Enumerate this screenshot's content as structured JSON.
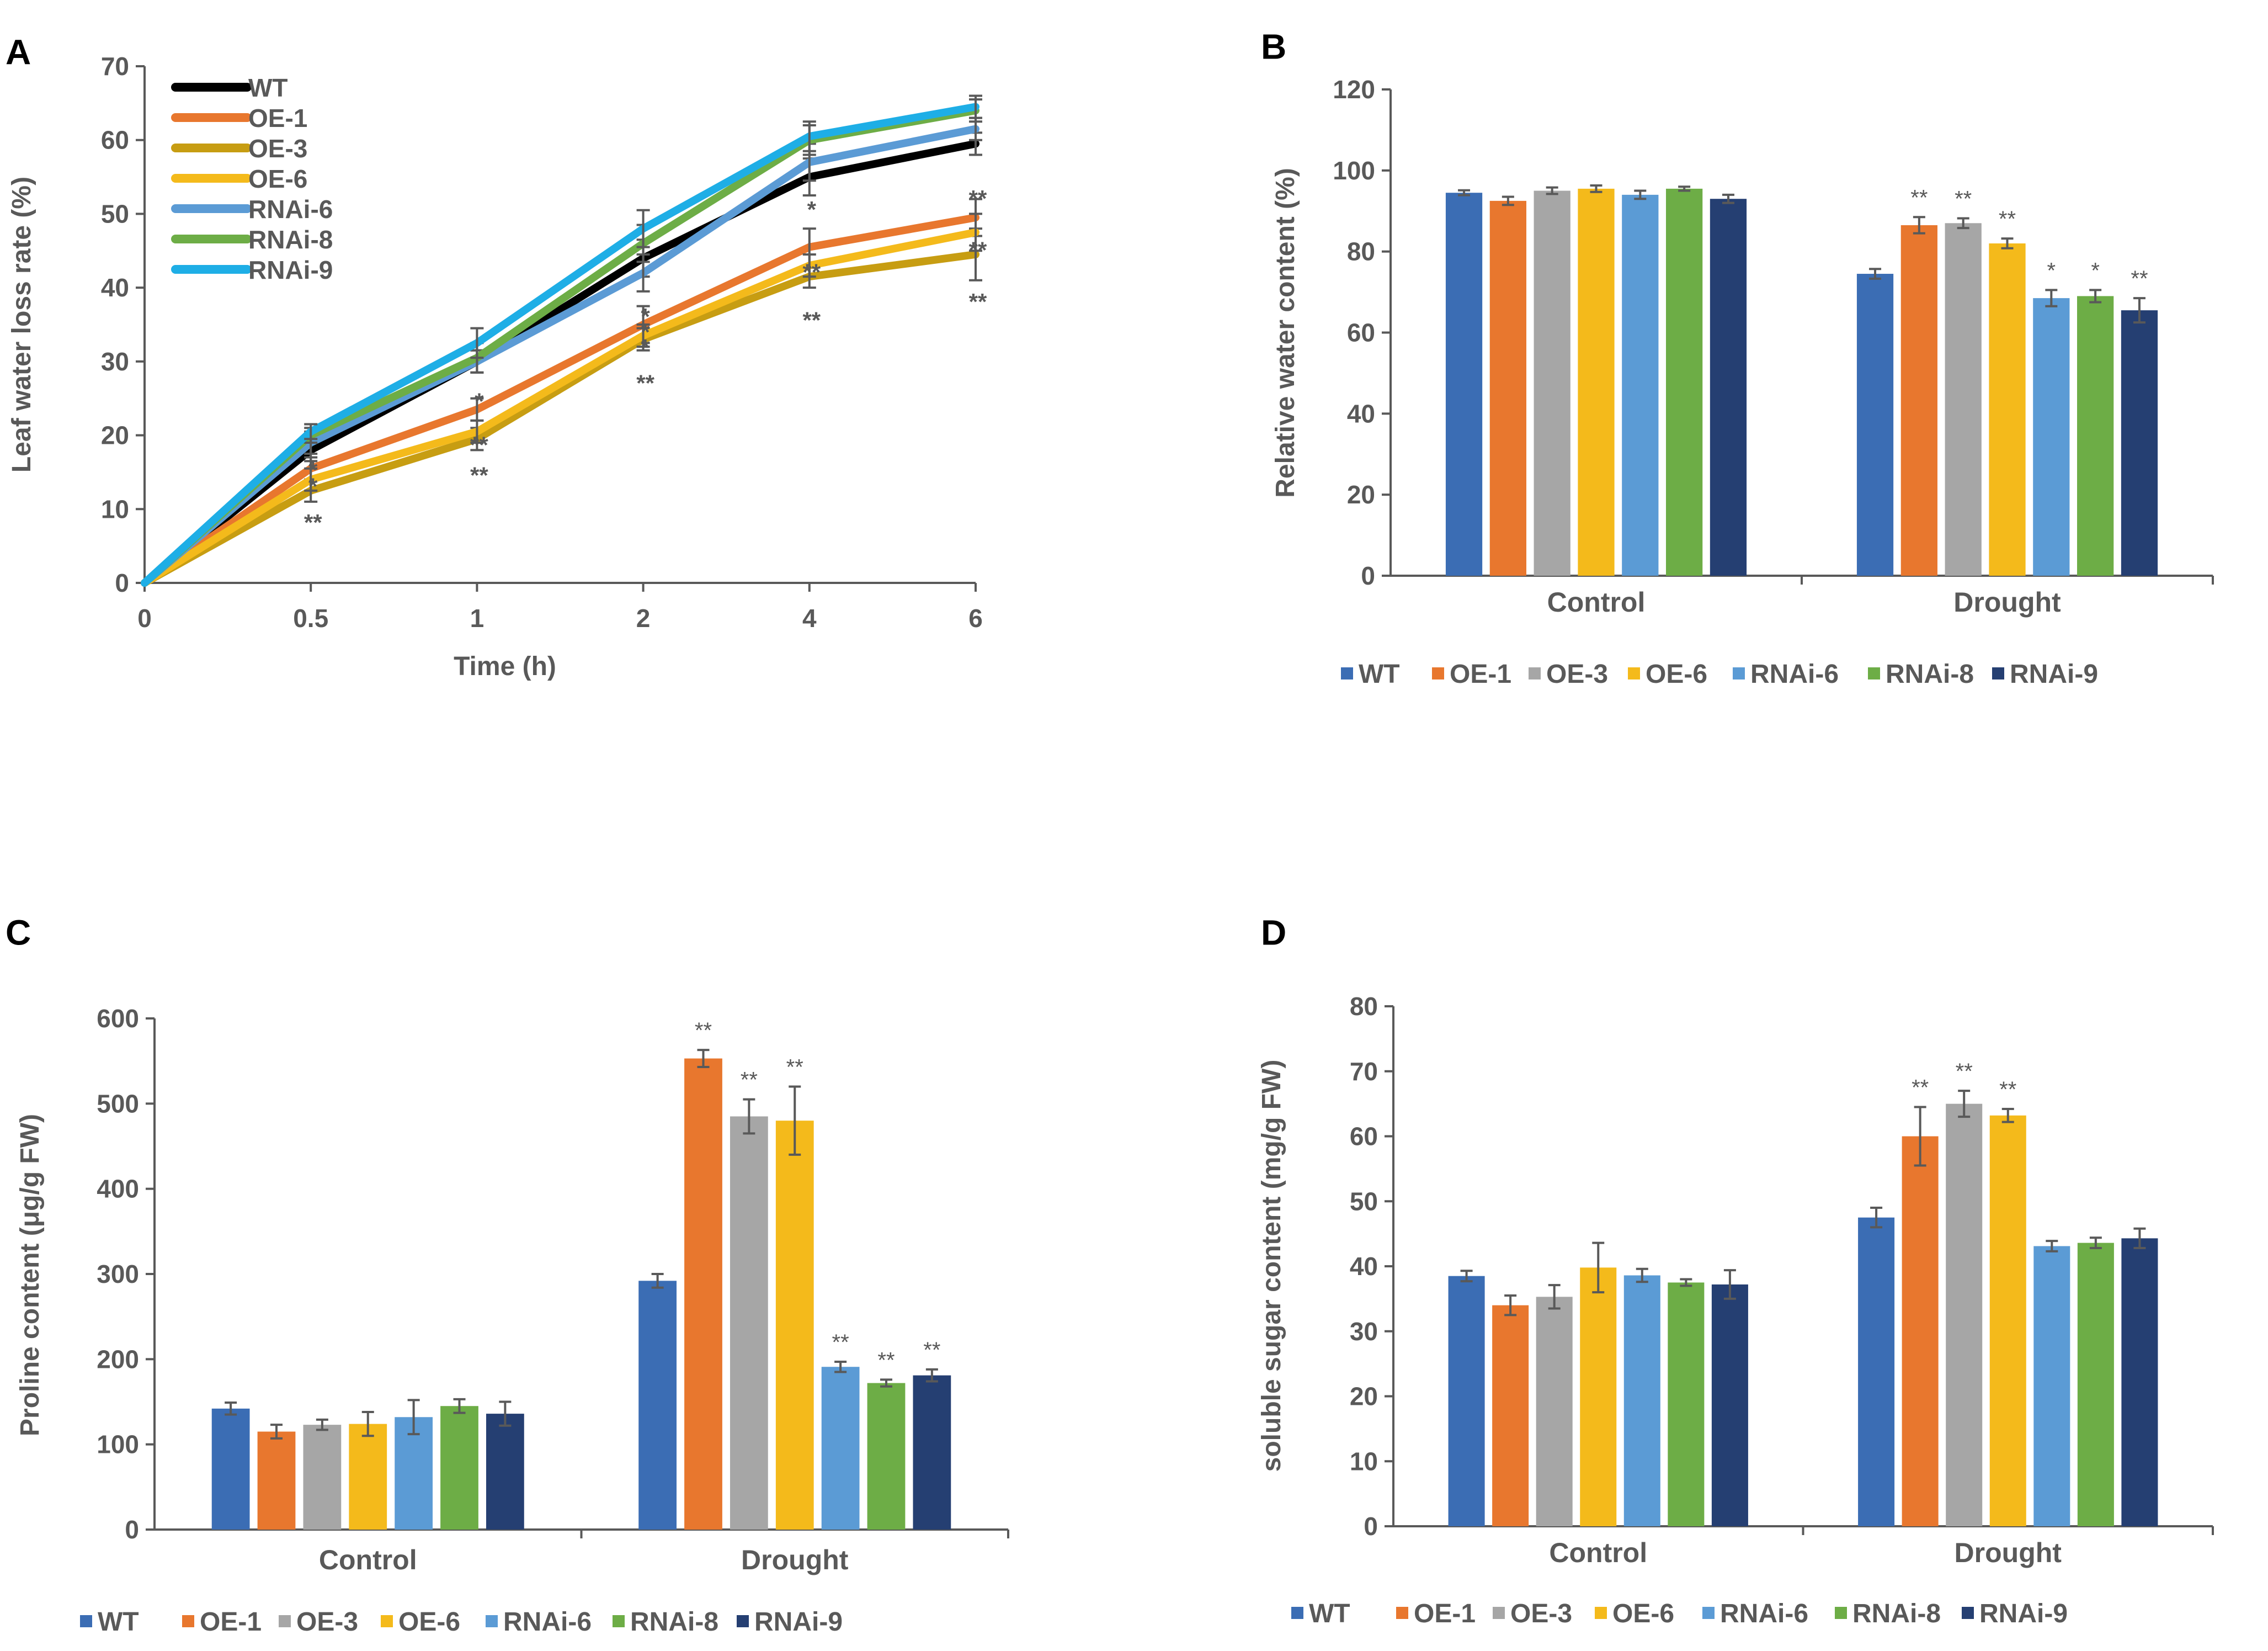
{
  "colors": {
    "WT_line": "#000000",
    "WT_bar": "#3B6DB4",
    "OE-1": "#E8772E",
    "OE-3_line": "#C79D12",
    "OE-3_bar": "#A6A6A6",
    "OE-6": "#F4BA1B",
    "RNAi-6": "#5B9BD5",
    "RNAi-8": "#6DAD46",
    "RNAi-9_line": "#1EAEE6",
    "RNAi-9_bar": "#253F72",
    "axis": "#595959",
    "text": "#595959",
    "panel_label": "#000000"
  },
  "chart_data": [
    {
      "panel": "A",
      "type": "line",
      "xlabel": "Time (h)",
      "ylabel": "Leaf water loss rate  (%)",
      "ylim": [
        0,
        70
      ],
      "yticks": [
        0,
        10,
        20,
        30,
        40,
        50,
        60,
        70
      ],
      "categories": [
        "0",
        "0.5",
        "1",
        "2",
        "4",
        "6"
      ],
      "legend": "top-left",
      "series": [
        {
          "name": "WT",
          "values": [
            0,
            18,
            30,
            44,
            55,
            59.5
          ],
          "err": [
            0,
            1.5,
            1.5,
            2.5,
            2.5,
            1.5
          ]
        },
        {
          "name": "OE-1",
          "values": [
            0,
            15.5,
            23.5,
            35,
            45.5,
            49.5
          ],
          "err": [
            0,
            1.5,
            1.5,
            2.5,
            2.5,
            2.5
          ]
        },
        {
          "name": "OE-3",
          "values": [
            0,
            12.5,
            19.5,
            33,
            41.5,
            44.5
          ],
          "err": [
            0,
            1.5,
            1.5,
            1.5,
            1.5,
            3.5
          ]
        },
        {
          "name": "OE-6",
          "values": [
            0,
            14,
            20.5,
            33.5,
            43,
            47.5
          ],
          "err": [
            0,
            1.5,
            1.5,
            1.5,
            1.5,
            2.5
          ]
        },
        {
          "name": "RNAi-6",
          "values": [
            0,
            19,
            30,
            42,
            57,
            61.5
          ],
          "err": [
            0,
            1.5,
            1.5,
            2.5,
            2.5,
            1.5
          ]
        },
        {
          "name": "RNAi-8",
          "values": [
            0,
            20,
            30.5,
            46,
            60,
            64
          ],
          "err": [
            0,
            1,
            2,
            2.5,
            2,
            1.5
          ]
        },
        {
          "name": "RNAi-9",
          "values": [
            0,
            20.5,
            32.5,
            48,
            60.5,
            64.5
          ],
          "err": [
            0,
            1,
            2,
            2.5,
            2,
            1.5
          ]
        }
      ],
      "annotations": [
        {
          "x": "0.5",
          "y": 15.7,
          "text": "*"
        },
        {
          "x": "0.5",
          "y": 13.5,
          "text": "*"
        },
        {
          "x": "0.5",
          "y": 8.6,
          "text": "**"
        },
        {
          "x": "1",
          "y": 25.0,
          "text": "*"
        },
        {
          "x": "1",
          "y": 19.1,
          "text": "**"
        },
        {
          "x": "1",
          "y": 15.0,
          "text": "**"
        },
        {
          "x": "2",
          "y": 36.5,
          "text": "*"
        },
        {
          "x": "2",
          "y": 34.4,
          "text": "*"
        },
        {
          "x": "2",
          "y": 32.3,
          "text": "*"
        },
        {
          "x": "2",
          "y": 27.5,
          "text": "**"
        },
        {
          "x": "4",
          "y": 51.0,
          "text": "*"
        },
        {
          "x": "4",
          "y": 42.5,
          "text": "**"
        },
        {
          "x": "4",
          "y": 36.0,
          "text": "**"
        },
        {
          "x": "6",
          "y": 52.5,
          "text": "**"
        },
        {
          "x": "6",
          "y": 45.5,
          "text": "**"
        },
        {
          "x": "6",
          "y": 38.5,
          "text": "**"
        }
      ]
    },
    {
      "panel": "B",
      "type": "bar",
      "ylabel": "Relative water content (%)",
      "ylim": [
        0,
        120
      ],
      "yticks": [
        0,
        20,
        40,
        60,
        80,
        100,
        120
      ],
      "categories": [
        "Control",
        "Drought"
      ],
      "legend": "bottom",
      "series": [
        {
          "name": "WT",
          "values": [
            94.5,
            74.5
          ],
          "err": [
            0.6,
            1.2
          ],
          "sig": [
            "",
            ""
          ]
        },
        {
          "name": "OE-1",
          "values": [
            92.5,
            86.5
          ],
          "err": [
            1.0,
            2.0
          ],
          "sig": [
            "",
            "**"
          ]
        },
        {
          "name": "OE-3",
          "values": [
            95,
            87
          ],
          "err": [
            0.8,
            1.2
          ],
          "sig": [
            "",
            "**"
          ]
        },
        {
          "name": "OE-6",
          "values": [
            95.5,
            82
          ],
          "err": [
            0.8,
            1.2
          ],
          "sig": [
            "",
            "**"
          ]
        },
        {
          "name": "RNAi-6",
          "values": [
            94,
            68.5
          ],
          "err": [
            1.0,
            2.0
          ],
          "sig": [
            "",
            "*"
          ]
        },
        {
          "name": "RNAi-8",
          "values": [
            95.5,
            69
          ],
          "err": [
            0.5,
            1.5
          ],
          "sig": [
            "",
            "*"
          ]
        },
        {
          "name": "RNAi-9",
          "values": [
            93,
            65.5
          ],
          "err": [
            1.0,
            3.0
          ],
          "sig": [
            "",
            "**"
          ]
        }
      ]
    },
    {
      "panel": "C",
      "type": "bar",
      "ylabel": "Proline content (μg/g  FW)",
      "ylim": [
        0,
        600
      ],
      "yticks": [
        0,
        100,
        200,
        300,
        400,
        500,
        600
      ],
      "categories": [
        "Control",
        "Drought"
      ],
      "legend": "bottom",
      "series": [
        {
          "name": "WT",
          "values": [
            142,
            292
          ],
          "err": [
            7,
            8
          ],
          "sig": [
            "",
            ""
          ]
        },
        {
          "name": "OE-1",
          "values": [
            115,
            553
          ],
          "err": [
            8,
            10
          ],
          "sig": [
            "",
            "**"
          ]
        },
        {
          "name": "OE-3",
          "values": [
            123,
            485
          ],
          "err": [
            6,
            20
          ],
          "sig": [
            "",
            "**"
          ]
        },
        {
          "name": "OE-6",
          "values": [
            124,
            480
          ],
          "err": [
            14,
            40
          ],
          "sig": [
            "",
            "**"
          ]
        },
        {
          "name": "RNAi-6",
          "values": [
            132,
            191
          ],
          "err": [
            20,
            6
          ],
          "sig": [
            "",
            "**"
          ]
        },
        {
          "name": "RNAi-8",
          "values": [
            145,
            172
          ],
          "err": [
            8,
            4
          ],
          "sig": [
            "",
            "**"
          ]
        },
        {
          "name": "RNAi-9",
          "values": [
            136,
            181
          ],
          "err": [
            14,
            7
          ],
          "sig": [
            "",
            "**"
          ]
        }
      ]
    },
    {
      "panel": "D",
      "type": "bar",
      "ylabel": "soluble sugar content (mg/g FW)",
      "ylim": [
        0,
        80
      ],
      "yticks": [
        0,
        10,
        20,
        30,
        40,
        50,
        60,
        70,
        80
      ],
      "categories": [
        "Control",
        "Drought"
      ],
      "legend": "bottom",
      "series": [
        {
          "name": "WT",
          "values": [
            38.5,
            47.5
          ],
          "err": [
            0.8,
            1.5
          ],
          "sig": [
            "",
            ""
          ]
        },
        {
          "name": "OE-1",
          "values": [
            34,
            60
          ],
          "err": [
            1.5,
            4.5
          ],
          "sig": [
            "",
            "**"
          ]
        },
        {
          "name": "OE-3",
          "values": [
            35.3,
            65
          ],
          "err": [
            1.8,
            2.0
          ],
          "sig": [
            "",
            "**"
          ]
        },
        {
          "name": "OE-6",
          "values": [
            39.8,
            63.2
          ],
          "err": [
            3.8,
            1.0
          ],
          "sig": [
            "",
            "**"
          ]
        },
        {
          "name": "RNAi-6",
          "values": [
            38.6,
            43.1
          ],
          "err": [
            1.0,
            0.8
          ],
          "sig": [
            "",
            ""
          ]
        },
        {
          "name": "RNAi-8",
          "values": [
            37.5,
            43.6
          ],
          "err": [
            0.5,
            0.8
          ],
          "sig": [
            "",
            ""
          ]
        },
        {
          "name": "RNAi-9",
          "values": [
            37.2,
            44.3
          ],
          "err": [
            2.2,
            1.5
          ],
          "sig": [
            "",
            ""
          ]
        }
      ]
    }
  ]
}
